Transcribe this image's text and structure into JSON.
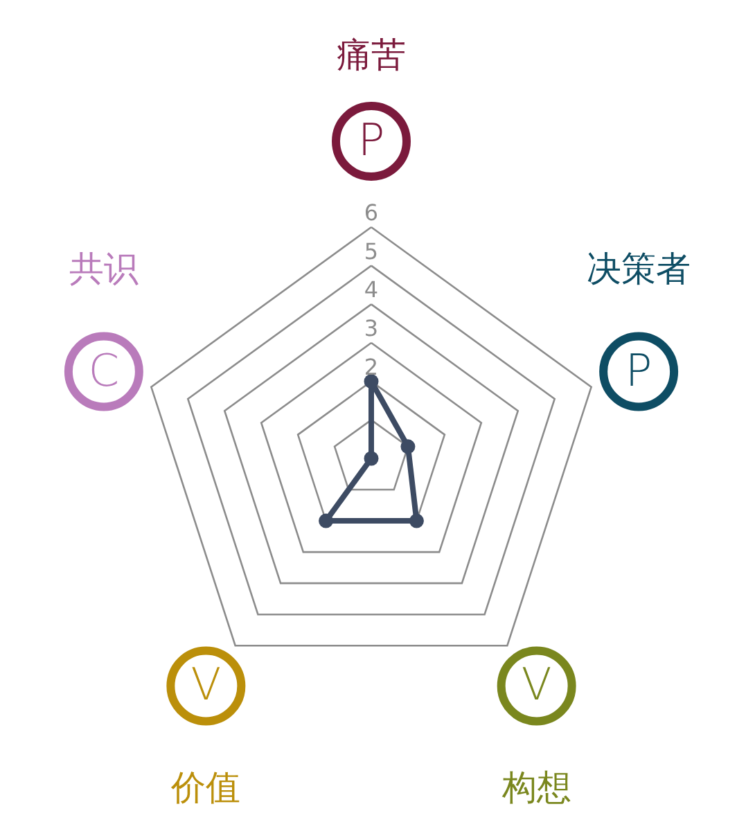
{
  "chart_data": {
    "type": "radar",
    "categories": [
      "痛苦",
      "决策者",
      "构想",
      "价值",
      "共识"
    ],
    "colors": [
      "#7b1a3c",
      "#0e4d64",
      "#7a871e",
      "#bb8f0a",
      "#b97bbb"
    ],
    "annotations": [
      "P",
      "P",
      "V",
      "V",
      "C"
    ],
    "ylim": [
      0,
      6
    ],
    "yticks": [
      2,
      3,
      4,
      5,
      6
    ],
    "grid": true,
    "marker": "circle",
    "series": [
      {
        "color": "#3d4b63",
        "values": [
          2,
          1,
          2,
          2,
          0
        ]
      }
    ]
  }
}
